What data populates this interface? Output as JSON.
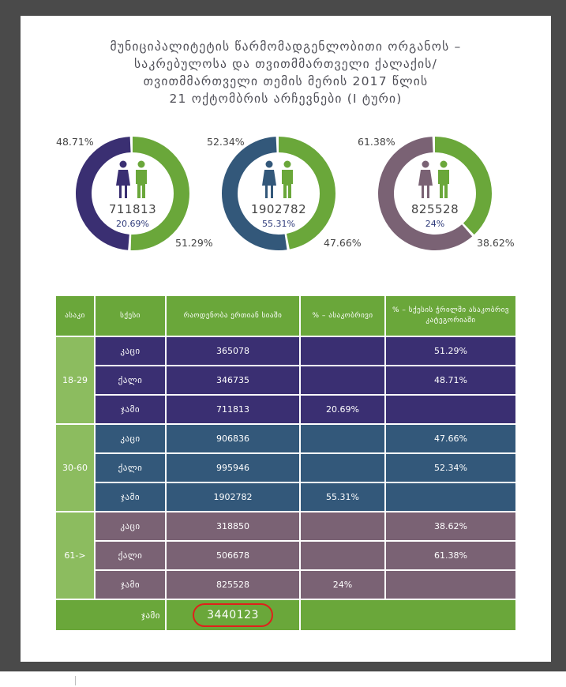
{
  "title": {
    "line1": "მუნიციპალიტეტის წარმომადგენლობითი ორგანოს –",
    "line2": "საკრებულოსა და თვითმმართველი ქალაქის/",
    "line3": "თვითმმართველი თემის მერის 2017 წლის",
    "line4": "21 ოქტომბრის არჩევნები (I ტური)"
  },
  "donuts": [
    {
      "female_pct": "48.71%",
      "male_pct": "51.29%",
      "total": "711813",
      "share": "20.69%",
      "female_fraction": 0.4871,
      "color": "#3a2f72"
    },
    {
      "female_pct": "52.34%",
      "male_pct": "47.66%",
      "total": "1902782",
      "share": "55.31%",
      "female_fraction": 0.5234,
      "color": "#33587a"
    },
    {
      "female_pct": "61.38%",
      "male_pct": "38.62%",
      "total": "825528",
      "share": "24%",
      "female_fraction": 0.6138,
      "color": "#7a6274"
    }
  ],
  "colors": {
    "male": "#6aa73a",
    "header": "#6aa73a",
    "age_cell": "#8cbc5f"
  },
  "table": {
    "headers": [
      "ასაკი",
      "სქესი",
      "რაოდენობა ერთიან სიაში",
      "% – ასაკობრივი",
      "% – სქესის ჭრილში ასაკობრივ კატეგორიაში"
    ],
    "groups": [
      {
        "age": "18-29",
        "rows": [
          {
            "sex": "კაცი",
            "count": "365078",
            "age_pct": "",
            "sex_pct": "51.29%"
          },
          {
            "sex": "ქალი",
            "count": "346735",
            "age_pct": "",
            "sex_pct": "48.71%"
          },
          {
            "sex": "ჯამი",
            "count": "711813",
            "age_pct": "20.69%",
            "sex_pct": ""
          }
        ]
      },
      {
        "age": "30-60",
        "rows": [
          {
            "sex": "კაცი",
            "count": "906836",
            "age_pct": "",
            "sex_pct": "47.66%"
          },
          {
            "sex": "ქალი",
            "count": "995946",
            "age_pct": "",
            "sex_pct": "52.34%"
          },
          {
            "sex": "ჯამი",
            "count": "1902782",
            "age_pct": "55.31%",
            "sex_pct": ""
          }
        ]
      },
      {
        "age": "61->",
        "rows": [
          {
            "sex": "კაცი",
            "count": "318850",
            "age_pct": "",
            "sex_pct": "38.62%"
          },
          {
            "sex": "ქალი",
            "count": "506678",
            "age_pct": "",
            "sex_pct": "61.38%"
          },
          {
            "sex": "ჯამი",
            "count": "825528",
            "age_pct": "24%",
            "sex_pct": ""
          }
        ]
      }
    ],
    "total_label": "ჯამი",
    "total_value": "3440123"
  }
}
